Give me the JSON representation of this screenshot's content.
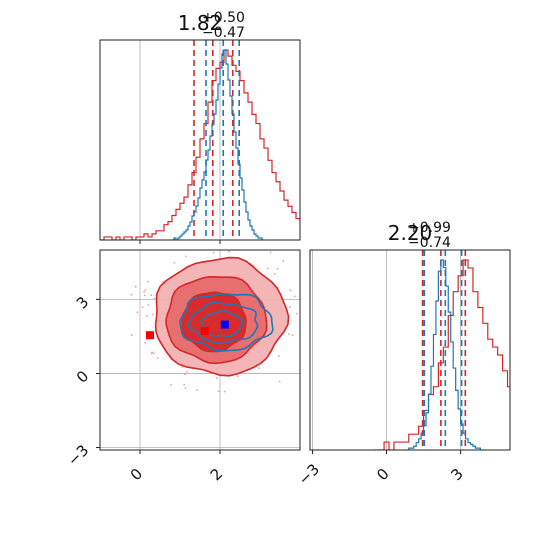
{
  "chart_data": {
    "type": "corner",
    "parameters": [
      {
        "title": {
          "median": "1.82",
          "plus": "+0.50",
          "minus": "−0.47"
        },
        "range": [
          -1.0,
          4.0
        ]
      },
      {
        "title": {
          "median": "2.20",
          "plus": "+0.99",
          "minus": "−0.74"
        },
        "range": [
          -3.1,
          5.0
        ]
      }
    ],
    "ticks": {
      "joint_x": {
        "values": [
          0,
          2
        ],
        "labels": [
          "0",
          "2"
        ]
      },
      "joint_y": {
        "values": [
          -3,
          0,
          3
        ],
        "labels": [
          "−3",
          "0",
          "3"
        ]
      },
      "marginal2_x": {
        "values": [
          -3,
          0,
          3
        ],
        "labels": [
          "−3",
          "0",
          "3"
        ]
      }
    },
    "series": [
      {
        "color": "#d62728",
        "hist1": {
          "edges_start": -1.0,
          "bin_width": 0.1,
          "counts": [
            0,
            1,
            1,
            0,
            1,
            0,
            1,
            1,
            0,
            1,
            1,
            2,
            1,
            2,
            3,
            3,
            5,
            6,
            8,
            10,
            12,
            14,
            18,
            22,
            27,
            33,
            38,
            45,
            52,
            56,
            58,
            62,
            60,
            57,
            55,
            52,
            48,
            45,
            41,
            38,
            33,
            30,
            26,
            22,
            19,
            16,
            13,
            11,
            9,
            7,
            6,
            5,
            4,
            3,
            2,
            2,
            1,
            1,
            1,
            0
          ]
        },
        "quantiles1": [
          1.35,
          1.82,
          2.32
        ],
        "hist2": {
          "edges_start": -0.5,
          "bin_width": 0.2,
          "counts": [
            0,
            0,
            1,
            0,
            1,
            1,
            1,
            2,
            2,
            3,
            5,
            7,
            8,
            11,
            13,
            17,
            20,
            22,
            24,
            23,
            20,
            18,
            16,
            14,
            13,
            12,
            10,
            8,
            7,
            5,
            5,
            4,
            3,
            2,
            1,
            1,
            1,
            0
          ]
        },
        "quantiles2": [
          1.46,
          2.2,
          3.19
        ],
        "joint_contours": [
          {
            "level": "outer",
            "cx": 2.0,
            "cy": 2.3,
            "rx": 1.65,
            "ry": 2.35
          },
          {
            "level": "mid",
            "cx": 1.9,
            "cy": 2.2,
            "rx": 1.25,
            "ry": 1.75
          },
          {
            "level": "inner",
            "cx": 1.85,
            "cy": 2.1,
            "rx": 0.8,
            "ry": 1.2
          }
        ],
        "marker": {
          "x": 1.62,
          "y": 1.72,
          "symbol": "square"
        },
        "extra_marker": {
          "x": 0.25,
          "y": 1.55,
          "symbol": "square"
        }
      },
      {
        "color": "#1f77b4",
        "hist1": {
          "edges_start": 0.8,
          "bin_width": 0.05,
          "counts": [
            0,
            1,
            0,
            1,
            2,
            3,
            4,
            5,
            7,
            9,
            12,
            14,
            17,
            21,
            26,
            30,
            34,
            40,
            45,
            52,
            58,
            63,
            70,
            78,
            86,
            93,
            95,
            88,
            80,
            72,
            63,
            54,
            46,
            38,
            31,
            25,
            19,
            14,
            10,
            7,
            5,
            3,
            2,
            1,
            1,
            0
          ]
        },
        "quantiles1": [
          1.65,
          2.08,
          2.48
        ],
        "hist2": {
          "edges_start": 0.8,
          "bin_width": 0.1,
          "counts": [
            0,
            1,
            1,
            2,
            4,
            6,
            9,
            13,
            20,
            30,
            45,
            62,
            80,
            96,
            102,
            98,
            88,
            74,
            58,
            44,
            32,
            22,
            14,
            9,
            6,
            4,
            3,
            2,
            1,
            1,
            0
          ]
        },
        "quantiles2": [
          1.53,
          2.38,
          3.04
        ],
        "joint_contours": [
          {
            "level": "outer",
            "cx": 2.15,
            "cy": 2.1,
            "rx": 1.15,
            "ry": 1.15
          },
          {
            "level": "mid",
            "cx": 2.1,
            "cy": 2.05,
            "rx": 0.85,
            "ry": 0.8
          },
          {
            "level": "inner",
            "cx": 2.05,
            "cy": 2.0,
            "rx": 0.5,
            "ry": 0.5
          }
        ],
        "marker": {
          "x": 2.12,
          "y": 1.98,
          "symbol": "square"
        }
      }
    ],
    "grid": true,
    "legend": "none"
  }
}
